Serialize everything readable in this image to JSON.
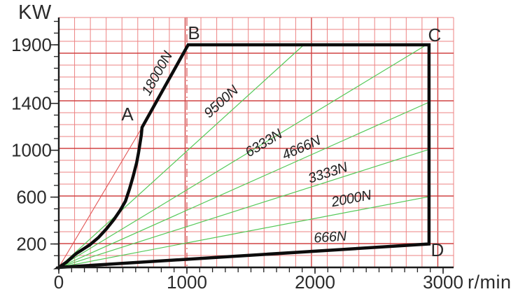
{
  "axis_units": {
    "y": "KW",
    "x": "r/min"
  },
  "chart_data": {
    "type": "line",
    "xlabel": "r/min",
    "ylabel": "KW",
    "xlim": [
      0,
      3080
    ],
    "ylim": [
      0,
      2130
    ],
    "x_tick_values": [
      0,
      1000,
      2000,
      3000
    ],
    "x_tick_labels": [
      "0",
      "1000",
      "2000",
      "3000"
    ],
    "y_tick_values": [
      200,
      600,
      1000,
      1400,
      1900
    ],
    "y_tick_labels": [
      "200",
      "600",
      "1000",
      "1400",
      "1900"
    ],
    "minor_tick_step_x": 100,
    "minor_tick_step_y": 100,
    "grid": true,
    "reference_line_x": 1000,
    "envelope": {
      "curve_O_to_A": [
        [
          0,
          0
        ],
        [
          60,
          45
        ],
        [
          131,
          114
        ],
        [
          240,
          191
        ],
        [
          310,
          255
        ],
        [
          372,
          329
        ],
        [
          430,
          408
        ],
        [
          481,
          490
        ],
        [
          520,
          565
        ],
        [
          552,
          669
        ],
        [
          580,
          775
        ],
        [
          607,
          890
        ],
        [
          622,
          975
        ],
        [
          634,
          1058
        ],
        [
          644,
          1130
        ],
        [
          650,
          1195
        ]
      ],
      "A": [
        650,
        1195
      ],
      "B": [
        1010,
        1900
      ],
      "C": [
        2890,
        1900
      ],
      "D": [
        2890,
        200
      ]
    },
    "force_lines": [
      {
        "label": "18000N",
        "from": [
          0,
          0
        ],
        "to": [
          650,
          1195
        ],
        "style": "red-thin",
        "label_at": [
          798,
          1637
        ],
        "angle_from": [
          [
            650,
            1195
          ],
          [
            1010,
            1900
          ]
        ]
      },
      {
        "label": "9500N",
        "from": [
          0,
          0
        ],
        "to": [
          1913,
          1900
        ],
        "style": "green",
        "label_at": [
          1290,
          1386
        ]
      },
      {
        "label": "6333N",
        "from": [
          0,
          0
        ],
        "to": [
          2870,
          1900
        ],
        "style": "green",
        "label_at": [
          1617,
          1028
        ]
      },
      {
        "label": "4666N",
        "from": [
          0,
          0
        ],
        "to": [
          2890,
          1410
        ],
        "style": "green",
        "label_at": [
          1907,
          986
        ]
      },
      {
        "label": "3333N",
        "from": [
          0,
          0
        ],
        "to": [
          2890,
          1007
        ],
        "style": "green",
        "label_at": [
          2110,
          771
        ]
      },
      {
        "label": "2000N",
        "from": [
          0,
          0
        ],
        "to": [
          2890,
          604
        ],
        "style": "green",
        "label_at": [
          2290,
          550
        ]
      },
      {
        "label": "666N",
        "from": [
          0,
          0
        ],
        "to": [
          2890,
          201
        ],
        "style": "green",
        "label_at": [
          2120,
          221
        ]
      }
    ],
    "corner_labels": [
      {
        "text": "A",
        "at": [
          536,
          1309
        ]
      },
      {
        "text": "B",
        "at": [
          1055,
          2002
        ]
      },
      {
        "text": "C",
        "at": [
          2934,
          1984
        ]
      },
      {
        "text": "D",
        "at": [
          2956,
          149
        ]
      }
    ],
    "colors": {
      "grid": "#ec8383",
      "grid_major": "#d04343",
      "dash_line": "#d84f4f",
      "force_line_green": "#55c959",
      "thin_red_line": "#e25555",
      "envelope": "#0c0c0c",
      "axis": "#1a1a1a",
      "text": "#2b2b2b"
    }
  }
}
